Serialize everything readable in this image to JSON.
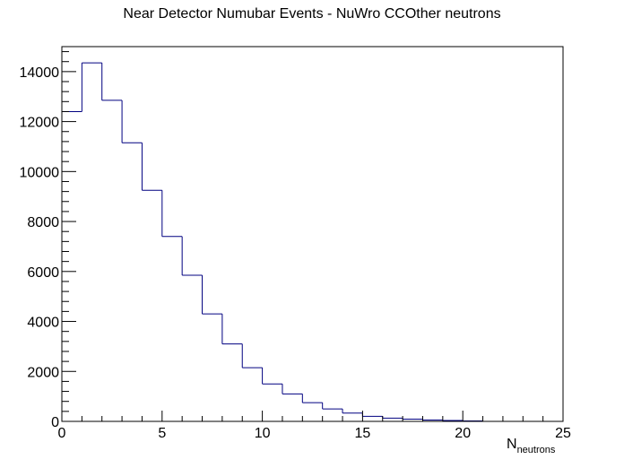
{
  "chart_data": {
    "type": "histogram",
    "title": "Near Detector Numubar Events - NuWro CCOther neutrons",
    "xlabel_main": "N",
    "xlabel_sub": "neutrons",
    "ylabel": "",
    "xlim": [
      0,
      25
    ],
    "ylim": [
      0,
      15000
    ],
    "x_ticks": [
      0,
      5,
      10,
      15,
      20,
      25
    ],
    "y_ticks": [
      0,
      2000,
      4000,
      6000,
      8000,
      10000,
      12000,
      14000
    ],
    "bin_edges": [
      0,
      1,
      2,
      3,
      4,
      5,
      6,
      7,
      8,
      9,
      10,
      11,
      12,
      13,
      14,
      15,
      16,
      17,
      18,
      19,
      20,
      21,
      22,
      23,
      24,
      25
    ],
    "values": [
      12400,
      14350,
      12850,
      11150,
      9250,
      7400,
      5850,
      4300,
      3100,
      2150,
      1500,
      1100,
      750,
      500,
      330,
      200,
      130,
      90,
      55,
      35,
      20,
      0,
      0,
      0,
      0
    ],
    "line_color": "#000080",
    "grid": false,
    "legend": false
  }
}
